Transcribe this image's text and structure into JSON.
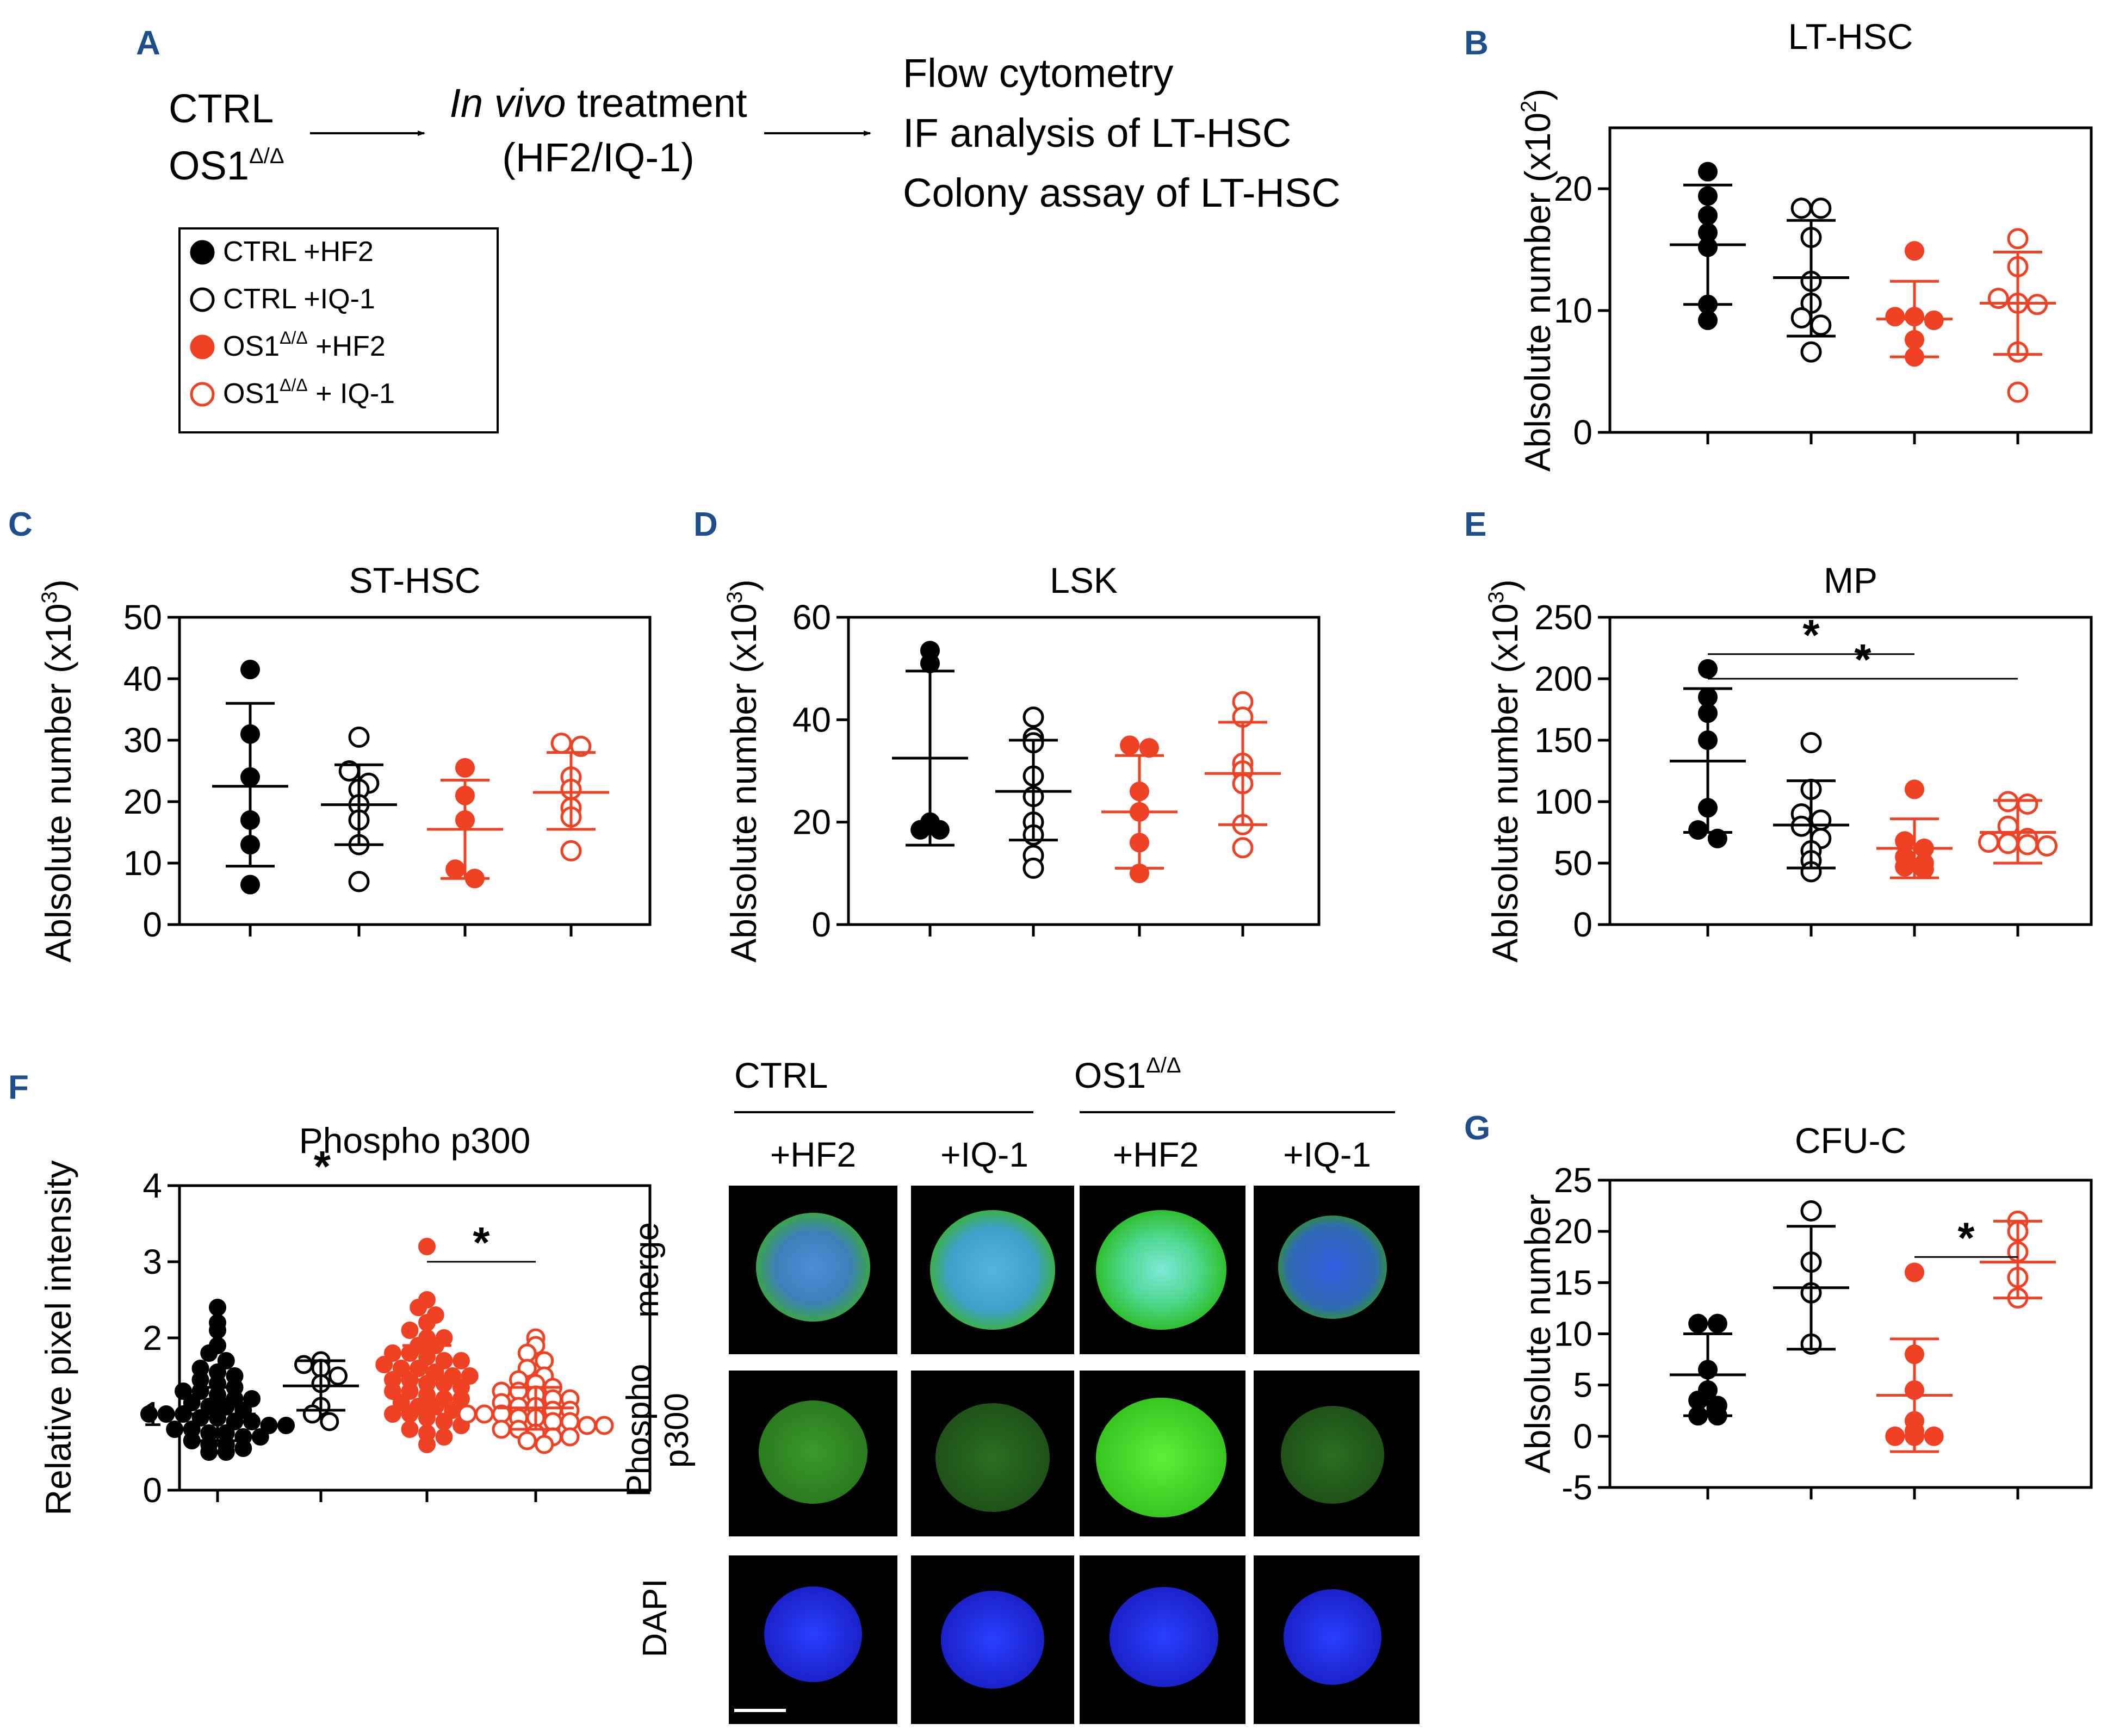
{
  "figure": {
    "panel_labels": [
      "A",
      "B",
      "C",
      "D",
      "E",
      "F",
      "G"
    ],
    "colors": {
      "ctrl": "#000000",
      "os1": "#ef4123",
      "panel_label": "#1f4e8c"
    }
  },
  "schematic": {
    "ctrl": "CTRL",
    "os1_base": "OS1",
    "os1_sup": "Δ/Δ",
    "treatment_italic": "In vivo",
    "treatment_rest": " treatment",
    "treatment_drugs": "(HF2/IQ-1)",
    "readouts": [
      "Flow cytometry",
      "IF analysis of LT-HSC",
      "Colony assay of LT-HSC"
    ]
  },
  "legend": {
    "items": [
      {
        "prefix": "CTRL",
        "sup": "",
        "suffix": " +HF2",
        "color": "#000000",
        "filled": true
      },
      {
        "prefix": "CTRL",
        "sup": "",
        "suffix": " +IQ-1",
        "color": "#000000",
        "filled": false
      },
      {
        "prefix": "OS1",
        "sup": "Δ/Δ",
        "suffix": " +HF2",
        "color": "#ef4123",
        "filled": true
      },
      {
        "prefix": "OS1",
        "sup": "Δ/Δ",
        "suffix": " + IQ-1",
        "color": "#ef4123",
        "filled": false
      }
    ]
  },
  "images": {
    "group_labels": [
      {
        "base": "CTRL",
        "sup": ""
      },
      {
        "base": "OS1",
        "sup": "Δ/Δ"
      }
    ],
    "col_labels": [
      "+HF2",
      "+IQ-1",
      "+HF2",
      "+IQ-1"
    ],
    "row_labels": [
      "merge",
      "Phospho",
      "p300",
      "DAPI"
    ]
  },
  "chart_data": [
    {
      "panel": "B",
      "type": "scatter",
      "title": "LT-HSC",
      "ylabel": "Ablsolute number (x10",
      "ylabel_sup": "2",
      "ylabel_end": ")",
      "ylim": [
        0,
        25
      ],
      "yticks": [
        0,
        10,
        20
      ],
      "groups": [
        {
          "name": "CTRL +HF2",
          "mean": 15.4,
          "sd_low": 10.5,
          "sd_high": 20.3,
          "points": [
            21.4,
            19.4,
            17.8,
            16.4,
            15.2,
            10.5,
            9.2
          ]
        },
        {
          "name": "CTRL +IQ-1",
          "mean": 12.7,
          "sd_low": 7.9,
          "sd_high": 17.4,
          "points": [
            18.4,
            18.4,
            16.0,
            12.4,
            10.6,
            9.4,
            8.8,
            6.6
          ]
        },
        {
          "name": "OS1 +HF2",
          "mean": 9.3,
          "sd_low": 6.2,
          "sd_high": 12.4,
          "points": [
            14.9,
            9.5,
            9.5,
            9.2,
            7.6,
            6.2
          ]
        },
        {
          "name": "OS1 +IQ-1",
          "mean": 10.6,
          "sd_low": 6.4,
          "sd_high": 14.8,
          "points": [
            15.9,
            13.6,
            11.0,
            10.6,
            10.5,
            6.6,
            3.3
          ]
        }
      ]
    },
    {
      "panel": "C",
      "type": "scatter",
      "title": "ST-HSC",
      "ylabel": "Ablsolute number (x10",
      "ylabel_sup": "3",
      "ylabel_end": ")",
      "ylim": [
        0,
        50
      ],
      "yticks": [
        0,
        10,
        20,
        30,
        40,
        50
      ],
      "groups": [
        {
          "name": "CTRL +HF2",
          "mean": 22.5,
          "sd_low": 9.5,
          "sd_high": 36.0,
          "points": [
            41.5,
            31.0,
            24.0,
            17.0,
            13.0,
            6.5
          ]
        },
        {
          "name": "CTRL +IQ-1",
          "mean": 19.5,
          "sd_low": 13.0,
          "sd_high": 26.0,
          "points": [
            30.5,
            25.0,
            23.0,
            22.0,
            19.5,
            17.0,
            13.0,
            7.0
          ]
        },
        {
          "name": "OS1 +HF2",
          "mean": 15.5,
          "sd_low": 7.5,
          "sd_high": 23.5,
          "points": [
            25.5,
            21.0,
            17.0,
            9.0,
            7.5
          ]
        },
        {
          "name": "OS1 +IQ-1",
          "mean": 21.5,
          "sd_low": 15.5,
          "sd_high": 28.0,
          "points": [
            29.5,
            29.0,
            24.0,
            22.0,
            19.0,
            17.5,
            12.0
          ]
        }
      ]
    },
    {
      "panel": "D",
      "type": "scatter",
      "title": "LSK",
      "ylabel": "Ablsolute number (x10",
      "ylabel_sup": "3",
      "ylabel_end": ")",
      "ylim": [
        0,
        60
      ],
      "yticks": [
        0,
        20,
        40,
        60
      ],
      "groups": [
        {
          "name": "CTRL +HF2",
          "mean": 32.5,
          "sd_low": 15.5,
          "sd_high": 49.5,
          "points": [
            53.5,
            51.0,
            18.5,
            20.0,
            18.5
          ]
        },
        {
          "name": "CTRL +IQ-1",
          "mean": 26.0,
          "sd_low": 16.5,
          "sd_high": 36.0,
          "points": [
            40.5,
            36.5,
            35.5,
            29.0,
            25.0,
            20.0,
            17.5,
            13.5,
            11.0
          ]
        },
        {
          "name": "OS1 +HF2",
          "mean": 22.0,
          "sd_low": 11.0,
          "sd_high": 33.0,
          "points": [
            35.0,
            34.5,
            26.0,
            22.0,
            16.0,
            10.0
          ]
        },
        {
          "name": "OS1 +IQ-1",
          "mean": 29.5,
          "sd_low": 19.5,
          "sd_high": 39.5,
          "points": [
            43.5,
            40.5,
            31.5,
            30.0,
            27.5,
            19.5,
            15.0
          ]
        }
      ]
    },
    {
      "panel": "E",
      "type": "scatter",
      "title": "MP",
      "ylabel": "Ablsolute number (x10",
      "ylabel_sup": "3",
      "ylabel_end": ")",
      "ylim": [
        0,
        250
      ],
      "yticks": [
        0,
        50,
        100,
        150,
        200,
        250
      ],
      "significance": [
        {
          "from": 0,
          "to": 2,
          "y": 220,
          "label": "*"
        },
        {
          "from": 0,
          "to": 3,
          "y": 200,
          "label": "*"
        }
      ],
      "groups": [
        {
          "name": "CTRL +HF2",
          "mean": 133,
          "sd_low": 75,
          "sd_high": 192,
          "points": [
            208,
            185,
            172,
            150,
            95,
            77,
            70
          ]
        },
        {
          "name": "CTRL +IQ-1",
          "mean": 81,
          "sd_low": 46,
          "sd_high": 117,
          "points": [
            148,
            110,
            90,
            85,
            80,
            70,
            60,
            52,
            43
          ]
        },
        {
          "name": "OS1 +HF2",
          "mean": 62,
          "sd_low": 38,
          "sd_high": 86,
          "points": [
            110,
            68,
            62,
            55,
            50,
            47,
            45
          ]
        },
        {
          "name": "OS1 +IQ-1",
          "mean": 75,
          "sd_low": 50,
          "sd_high": 101,
          "points": [
            100,
            98,
            80,
            70,
            67,
            66,
            65,
            64
          ]
        }
      ]
    },
    {
      "panel": "F",
      "type": "scatter",
      "title": "Phospho p300",
      "ylabel": "Relative pixel intensity",
      "ylabel_sup": "",
      "ylabel_end": "",
      "ylim": [
        0,
        4
      ],
      "yticks": [
        0,
        1,
        2,
        3,
        4
      ],
      "significance": [
        {
          "from": 0,
          "to": 2,
          "y": 4.0,
          "label": "*"
        },
        {
          "from": 2,
          "to": 3,
          "y": 3.0,
          "label": "*"
        }
      ],
      "groups": [
        {
          "name": "CTRL +HF2",
          "mean": 1.0,
          "sd_low": 0.65,
          "sd_high": 1.35,
          "points": [
            2.4,
            2.2,
            2.1,
            1.9,
            1.8,
            1.7,
            1.6,
            1.55,
            1.5,
            1.45,
            1.4,
            1.35,
            1.3,
            1.3,
            1.25,
            1.2,
            1.2,
            1.15,
            1.1,
            1.1,
            1.05,
            1.0,
            1.0,
            1.0,
            0.95,
            0.95,
            0.9,
            0.9,
            0.85,
            0.85,
            0.8,
            0.8,
            0.75,
            0.75,
            0.7,
            0.7,
            0.65,
            0.6,
            0.6,
            0.55,
            0.5,
            0.5
          ]
        },
        {
          "name": "CTRL +IQ-1",
          "mean": 1.37,
          "sd_low": 1.05,
          "sd_high": 1.7,
          "points": [
            1.7,
            1.65,
            1.6,
            1.5,
            1.4,
            1.1,
            1.0,
            0.9
          ]
        },
        {
          "name": "OS1 +HF2",
          "mean": 1.45,
          "sd_low": 1.0,
          "sd_high": 1.9,
          "points": [
            3.2,
            2.5,
            2.4,
            2.3,
            2.2,
            2.1,
            2.0,
            2.0,
            1.9,
            1.9,
            1.8,
            1.8,
            1.75,
            1.7,
            1.7,
            1.65,
            1.6,
            1.6,
            1.55,
            1.5,
            1.5,
            1.45,
            1.45,
            1.4,
            1.4,
            1.35,
            1.3,
            1.3,
            1.25,
            1.2,
            1.2,
            1.15,
            1.1,
            1.1,
            1.05,
            1.0,
            1.0,
            0.95,
            0.9,
            0.85,
            0.8,
            0.75,
            0.7,
            0.6
          ]
        },
        {
          "name": "OS1 +IQ-1",
          "mean": 1.08,
          "sd_low": 0.8,
          "sd_high": 1.35,
          "points": [
            2.0,
            1.9,
            1.8,
            1.7,
            1.6,
            1.5,
            1.45,
            1.4,
            1.35,
            1.3,
            1.3,
            1.25,
            1.2,
            1.2,
            1.15,
            1.1,
            1.1,
            1.05,
            1.05,
            1.0,
            1.0,
            1.0,
            0.95,
            0.95,
            0.9,
            0.9,
            0.85,
            0.85,
            0.8,
            0.8,
            0.75,
            0.7,
            0.7,
            0.65,
            0.6
          ]
        }
      ]
    },
    {
      "panel": "G",
      "type": "scatter",
      "title": "CFU-C",
      "ylabel": "Ablsolute number",
      "ylabel_sup": "",
      "ylabel_end": "",
      "ylim": [
        -5,
        25
      ],
      "yticks": [
        -5,
        0,
        5,
        10,
        15,
        20,
        25
      ],
      "significance": [
        {
          "from": 2,
          "to": 3,
          "y": 17.5,
          "label": "*"
        }
      ],
      "groups": [
        {
          "name": "CTRL +HF2",
          "mean": 6.0,
          "sd_low": 2.0,
          "sd_high": 10.0,
          "points": [
            11.0,
            11.0,
            6.5,
            4.5,
            3.5,
            3.0,
            2.0,
            2.0
          ]
        },
        {
          "name": "CTRL +IQ-1",
          "mean": 14.5,
          "sd_low": 8.5,
          "sd_high": 20.5,
          "points": [
            22.0,
            17.0,
            14.0,
            9.0
          ]
        },
        {
          "name": "OS1 +HF2",
          "mean": 4.0,
          "sd_low": -1.5,
          "sd_high": 9.5,
          "points": [
            16.0,
            8.0,
            4.5,
            1.5,
            0.5,
            0.0,
            0.0,
            0.0
          ]
        },
        {
          "name": "OS1 +IQ-1",
          "mean": 17.0,
          "sd_low": 13.5,
          "sd_high": 21.0,
          "points": [
            21.0,
            20.0,
            18.0,
            15.5,
            13.5
          ]
        }
      ]
    }
  ]
}
